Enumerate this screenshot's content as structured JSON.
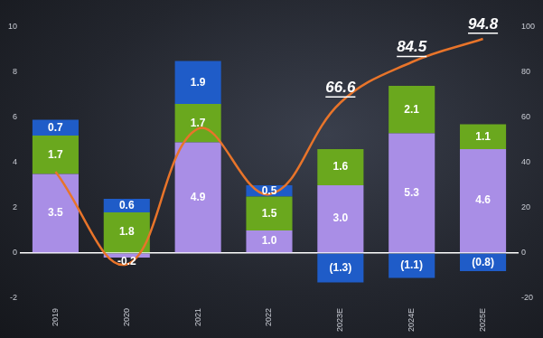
{
  "chart_data": {
    "type": "bar",
    "stacked": true,
    "data_labels": true,
    "grid": false,
    "categories": [
      "2019",
      "2020",
      "2021",
      "2022",
      "2023E",
      "2024E",
      "2025E"
    ],
    "ylim": [
      -2,
      10
    ],
    "yticks": [
      -2,
      0,
      2,
      4,
      6,
      8,
      10
    ],
    "y2lim": [
      -20,
      100
    ],
    "y2ticks": [
      -20,
      0,
      20,
      40,
      60,
      80,
      100
    ],
    "series": [
      {
        "type": "bar",
        "color": "#a98ee6",
        "values": [
          3.5,
          -0.2,
          4.9,
          1.0,
          3.0,
          5.3,
          4.6
        ],
        "value_labels": [
          "3.5",
          "-0.2",
          "4.9",
          "1.0",
          "3.0",
          "5.3",
          "4.6"
        ]
      },
      {
        "type": "bar",
        "color": "#6aa81e",
        "values": [
          1.7,
          1.8,
          1.7,
          1.5,
          1.6,
          2.1,
          1.1
        ],
        "value_labels": [
          "1.7",
          "1.8",
          "1.7",
          "1.5",
          "1.6",
          "2.1",
          "1.1"
        ]
      },
      {
        "type": "bar",
        "color": "#1f5cc8",
        "values": [
          0.7,
          0.6,
          1.9,
          0.5,
          -1.3,
          -1.1,
          -0.8
        ],
        "value_labels": [
          "0.7",
          "0.6",
          "1.9",
          "0.5",
          "(1.3)",
          "(1.1)",
          "(0.8)"
        ]
      },
      {
        "type": "line",
        "axis": "y2",
        "color": "#e8742a",
        "line_style": "smooth",
        "values": [
          36,
          -5,
          55,
          26,
          66.6,
          84.5,
          94.8
        ],
        "value_labels": [
          null,
          null,
          null,
          null,
          "66.6",
          "84.5",
          "94.8"
        ]
      }
    ]
  }
}
